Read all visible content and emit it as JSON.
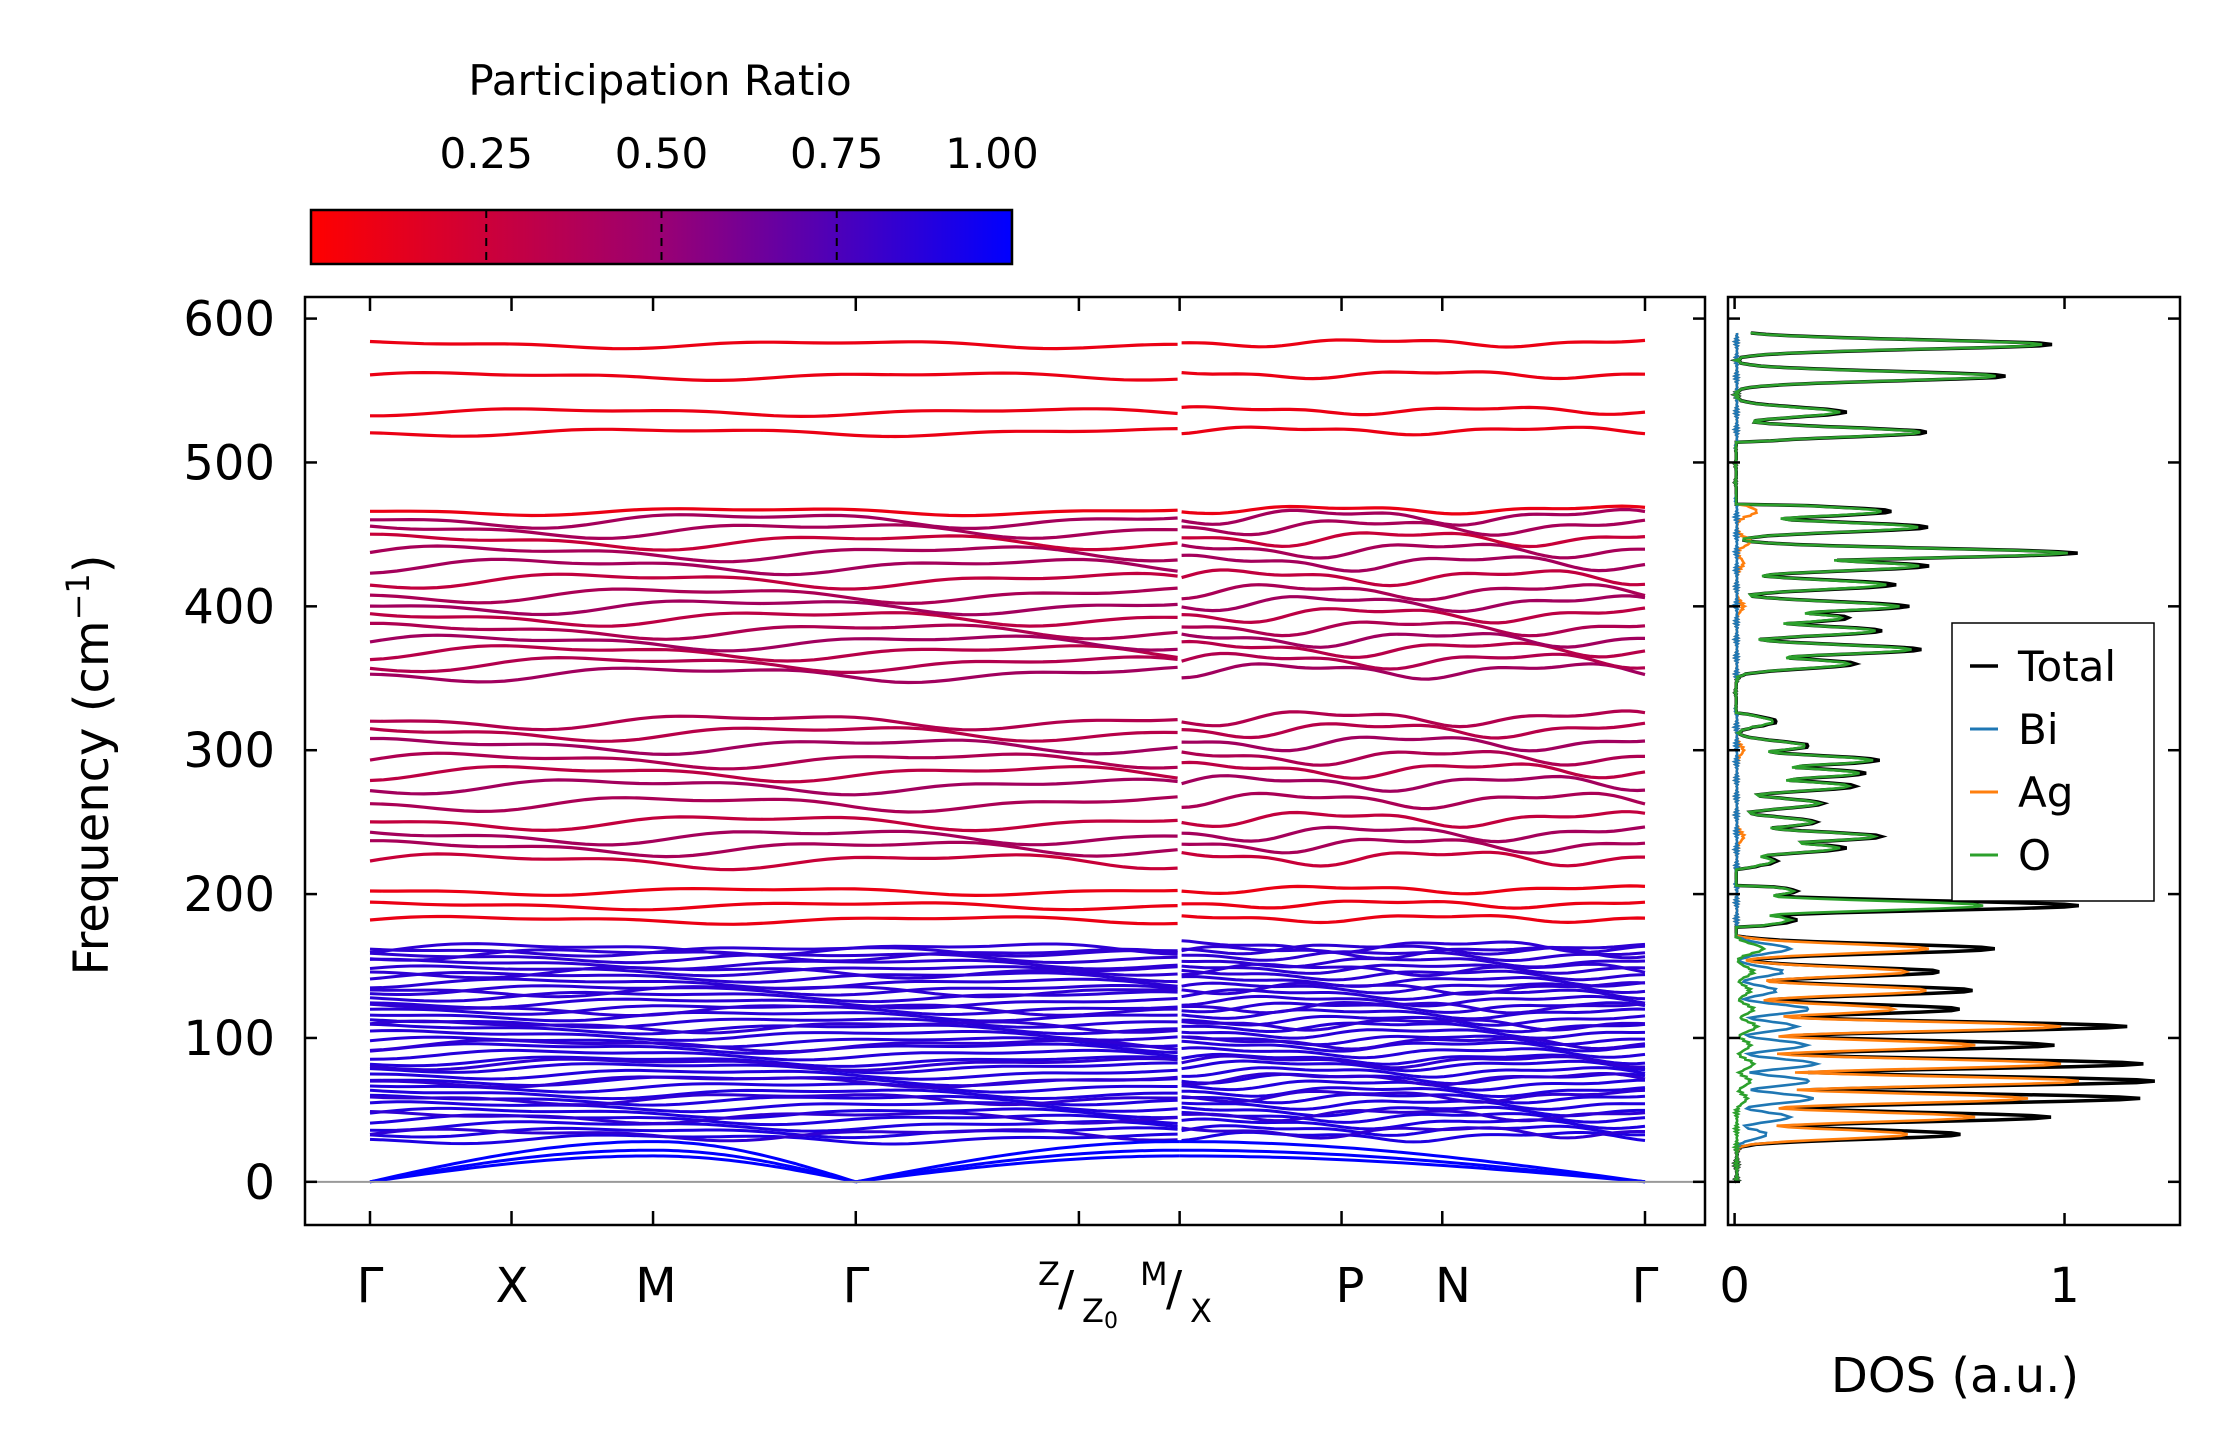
{
  "colors": {
    "cbar_low": "#ff0000",
    "cbar_mid": "#9a0073",
    "cbar_high": "#0000ff",
    "total": "#000000",
    "bi": "#1f77b4",
    "ag": "#ff7f0e",
    "o": "#2ca02c",
    "zero_line": "#999999"
  },
  "colorbar": {
    "title": "Participation Ratio",
    "ticks": [
      "0.25",
      "0.50",
      "0.75",
      "1.00"
    ],
    "tick_values": [
      0.25,
      0.5,
      0.75,
      1.0
    ],
    "range": [
      0.0,
      1.0
    ]
  },
  "chart_data": [
    {
      "type": "line",
      "name": "phonon band structure",
      "ylabel": "Frequency (cm",
      "ylabel_sup": "−1",
      "ylabel_close": ")",
      "ylim": [
        -30,
        615
      ],
      "yticks": [
        "0",
        "100",
        "200",
        "300",
        "400",
        "500",
        "600"
      ],
      "ytick_values": [
        0,
        100,
        200,
        300,
        400,
        500,
        600
      ],
      "kpath": [
        {
          "label": "Γ",
          "pos": 0.0
        },
        {
          "label": "X",
          "pos": 0.111
        },
        {
          "label": "M",
          "pos": 0.222
        },
        {
          "label": "Γ",
          "pos": 0.381
        },
        {
          "label": "",
          "pos": 0.556
        },
        {
          "label": "Z/Z₀ M/X",
          "pos": 0.635
        },
        {
          "label": "P",
          "pos": 0.762
        },
        {
          "label": "N",
          "pos": 0.841
        },
        {
          "label": "Γ",
          "pos": 1.0
        }
      ],
      "kpath_labels": {
        "gamma": "Γ",
        "x": "X",
        "m": "M",
        "z": "Z",
        "z0": "Z",
        "z0_sub": "0",
        "slash": "/",
        "mm": "M",
        "xx": "X",
        "p": "P",
        "n": "N"
      },
      "optical_bands_red": [
        182,
        192,
        202,
        521,
        535,
        560,
        582,
        466
      ],
      "optical_bands_mixed": [
        223,
        232,
        240,
        250,
        263,
        275,
        284,
        293,
        303,
        312,
        320,
        353,
        360,
        368,
        375,
        383,
        392,
        400,
        408,
        418,
        428,
        437,
        445,
        453,
        460
      ],
      "acoustic_bands_blue": [
        33,
        45,
        58,
        70,
        82,
        95,
        108,
        120,
        133,
        146,
        158,
        162
      ],
      "acoustic_max": [
        28,
        22,
        18
      ]
    },
    {
      "type": "line",
      "name": "density of states",
      "xlabel": "DOS (a.u.)",
      "xlim": [
        -0.02,
        1.35
      ],
      "xticks": [
        "0",
        "1"
      ],
      "xtick_values": [
        0,
        1
      ],
      "ylim": [
        -30,
        615
      ],
      "legend_location": "center-right",
      "series": [
        {
          "name": "Total",
          "color": "#000000",
          "peaks": [
            [
              582,
              0.96
            ],
            [
              560,
              0.82
            ],
            [
              535,
              0.33
            ],
            [
              521,
              0.58
            ],
            [
              466,
              0.47
            ],
            [
              455,
              0.58
            ],
            [
              437,
              1.03
            ],
            [
              428,
              0.58
            ],
            [
              415,
              0.48
            ],
            [
              400,
              0.52
            ],
            [
              392,
              0.34
            ],
            [
              383,
              0.44
            ],
            [
              370,
              0.56
            ],
            [
              360,
              0.36
            ],
            [
              320,
              0.12
            ],
            [
              303,
              0.22
            ],
            [
              293,
              0.43
            ],
            [
              284,
              0.39
            ],
            [
              275,
              0.36
            ],
            [
              263,
              0.26
            ],
            [
              250,
              0.24
            ],
            [
              240,
              0.44
            ],
            [
              232,
              0.33
            ],
            [
              223,
              0.12
            ],
            [
              202,
              0.18
            ],
            [
              192,
              1.04
            ],
            [
              182,
              0.18
            ],
            [
              162,
              0.78
            ],
            [
              146,
              0.62
            ],
            [
              133,
              0.72
            ],
            [
              120,
              0.68
            ],
            [
              108,
              1.18
            ],
            [
              95,
              0.96
            ],
            [
              82,
              1.23
            ],
            [
              70,
              1.27
            ],
            [
              58,
              1.22
            ],
            [
              45,
              0.95
            ],
            [
              33,
              0.68
            ]
          ]
        },
        {
          "name": "Bi",
          "color": "#1f77b4",
          "peaks": [
            [
              162,
              0.16
            ],
            [
              146,
              0.14
            ],
            [
              133,
              0.12
            ],
            [
              120,
              0.22
            ],
            [
              108,
              0.18
            ],
            [
              95,
              0.21
            ],
            [
              82,
              0.24
            ],
            [
              70,
              0.22
            ],
            [
              58,
              0.23
            ],
            [
              45,
              0.16
            ],
            [
              33,
              0.09
            ]
          ]
        },
        {
          "name": "Ag",
          "color": "#ff7f0e",
          "peaks": [
            [
              466,
              0.06
            ],
            [
              445,
              0.04
            ],
            [
              430,
              0.02
            ],
            [
              400,
              0.02
            ],
            [
              300,
              0.02
            ],
            [
              240,
              0.02
            ],
            [
              162,
              0.58
            ],
            [
              146,
              0.52
            ],
            [
              133,
              0.58
            ],
            [
              120,
              0.48
            ],
            [
              108,
              0.98
            ],
            [
              95,
              0.72
            ],
            [
              82,
              0.98
            ],
            [
              70,
              1.04
            ],
            [
              58,
              0.88
            ],
            [
              45,
              0.72
            ],
            [
              33,
              0.52
            ]
          ]
        },
        {
          "name": "O",
          "color": "#2ca02c",
          "peaks": [
            [
              582,
              0.93
            ],
            [
              560,
              0.79
            ],
            [
              535,
              0.31
            ],
            [
              521,
              0.56
            ],
            [
              466,
              0.44
            ],
            [
              455,
              0.55
            ],
            [
              437,
              1.0
            ],
            [
              428,
              0.55
            ],
            [
              415,
              0.45
            ],
            [
              400,
              0.49
            ],
            [
              392,
              0.32
            ],
            [
              383,
              0.42
            ],
            [
              370,
              0.53
            ],
            [
              360,
              0.34
            ],
            [
              320,
              0.11
            ],
            [
              303,
              0.21
            ],
            [
              293,
              0.41
            ],
            [
              284,
              0.37
            ],
            [
              275,
              0.34
            ],
            [
              263,
              0.25
            ],
            [
              250,
              0.23
            ],
            [
              240,
              0.42
            ],
            [
              232,
              0.31
            ],
            [
              223,
              0.11
            ],
            [
              202,
              0.17
            ],
            [
              192,
              0.75
            ],
            [
              182,
              0.16
            ],
            [
              162,
              0.08
            ],
            [
              146,
              0.05
            ],
            [
              133,
              0.04
            ],
            [
              120,
              0.05
            ],
            [
              108,
              0.06
            ],
            [
              95,
              0.04
            ],
            [
              82,
              0.05
            ],
            [
              70,
              0.04
            ],
            [
              58,
              0.03
            ]
          ]
        }
      ]
    }
  ]
}
